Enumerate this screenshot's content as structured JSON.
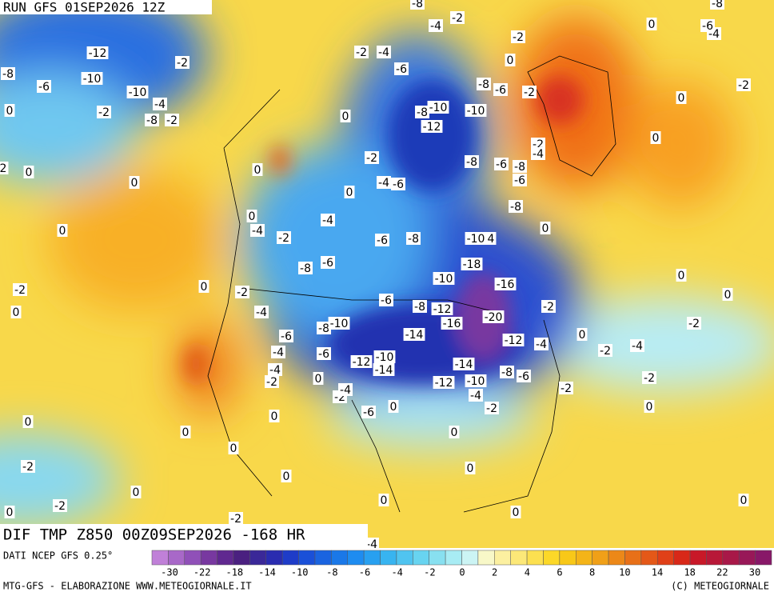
{
  "header": {
    "run": "RUN GFS 01SEP2026 12Z"
  },
  "footer": {
    "title": "DIF TMP Z850 00Z09SEP2026 -168 HR",
    "source": "DATI NCEP GFS 0.25°",
    "credits": "MTG-GFS - ELABORAZIONE WWW.METEOGIORNALE.IT",
    "copyright": "(C) METEOGIORNALE"
  },
  "colorbar": {
    "colors": [
      "#c080d8",
      "#a868c8",
      "#9050b8",
      "#7838a0",
      "#602890",
      "#4a2080",
      "#3a2898",
      "#2a2cb0",
      "#1e3cc8",
      "#1a50d8",
      "#1a64e0",
      "#1a78e8",
      "#1e8cf0",
      "#28a0f0",
      "#38b4f0",
      "#50c4f0",
      "#68d4f0",
      "#88e0f0",
      "#a8ecf4",
      "#ccf4f4",
      "#f8f8c8",
      "#fcf0a0",
      "#fce878",
      "#fce050",
      "#fcd828",
      "#f8c818",
      "#f4b418",
      "#f0a018",
      "#ec8818",
      "#e87018",
      "#e45818",
      "#e04018",
      "#d82818",
      "#c81828",
      "#b81838",
      "#a81848",
      "#981858",
      "#881868"
    ],
    "labels": [
      -30,
      -22,
      -18,
      -14,
      -10,
      -8,
      -6,
      -4,
      -2,
      0,
      2,
      4,
      6,
      8,
      10,
      14,
      18,
      22,
      30
    ]
  },
  "map_labels": [
    -12,
    -10,
    -6,
    -8,
    -10,
    -4,
    -2,
    -8,
    -2,
    -2,
    0,
    2,
    0,
    0,
    0,
    -2,
    0,
    0,
    0,
    0,
    -4,
    -2,
    -4,
    0,
    -2,
    -4,
    -6,
    0,
    -2,
    -4,
    -6,
    -8,
    -4,
    -2,
    -2,
    0,
    -8,
    -10,
    -10,
    -12,
    -8,
    -6,
    -2,
    -8,
    -6,
    -8,
    -6,
    -8,
    -2,
    -4,
    -6,
    -8,
    -10,
    4,
    -18,
    -10,
    -16,
    -8,
    -6,
    -2,
    -4,
    -6,
    -8,
    -12,
    -20,
    -16,
    -14,
    -12,
    -4,
    -8,
    -10,
    -6,
    -4,
    -6,
    -12,
    -10,
    -14,
    -14,
    -10,
    -12,
    -8,
    -6,
    -4,
    -2,
    -2,
    -4,
    -6,
    0,
    -4,
    -2,
    0,
    0,
    -2,
    0,
    -2,
    -4,
    -2,
    -2,
    0,
    -2,
    0,
    0,
    0,
    0,
    0,
    -2,
    0,
    -4,
    -6,
    -8,
    0,
    0,
    0,
    -2,
    0,
    -2,
    0,
    -2,
    0,
    0,
    0,
    0,
    0,
    0,
    -4
  ]
}
